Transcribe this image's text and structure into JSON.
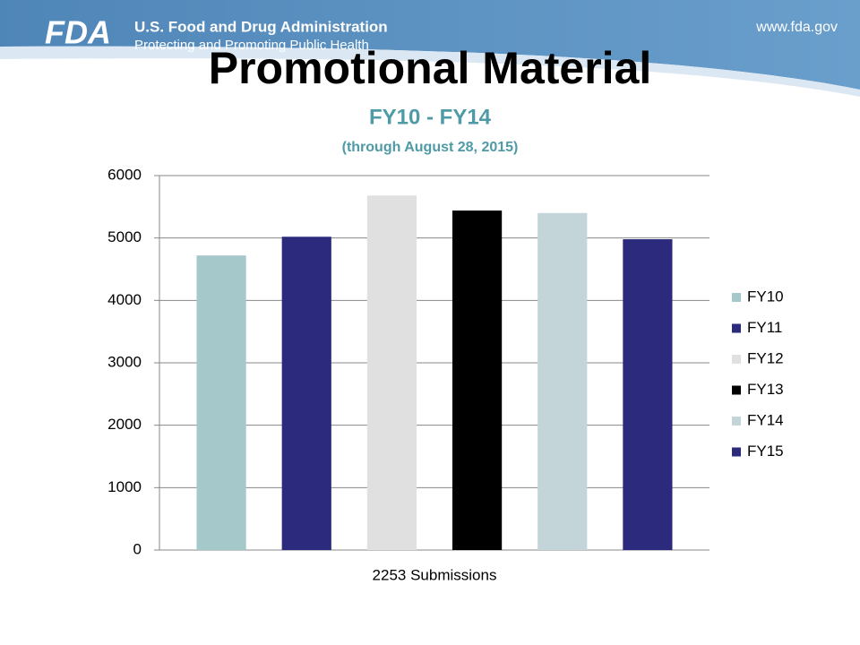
{
  "header": {
    "logo": "FDA",
    "agency": "U.S. Food and Drug Administration",
    "tagline": "Protecting and Promoting Public Health",
    "url": "www.fda.gov"
  },
  "chart_data": {
    "type": "bar",
    "title": "Promotional Material",
    "subtitle": "FY10 - FY14",
    "note": "(through August 28, 2015)",
    "categories": [
      "2253 Submissions"
    ],
    "series": [
      {
        "name": "FY10",
        "color": "#a5c8ca",
        "values": [
          4720
        ]
      },
      {
        "name": "FY11",
        "color": "#2b2a7c",
        "values": [
          5020
        ]
      },
      {
        "name": "FY12",
        "color": "#e0e0e0",
        "values": [
          5680
        ]
      },
      {
        "name": "FY13",
        "color": "#000000",
        "values": [
          5440
        ]
      },
      {
        "name": "FY14",
        "color": "#c3d5d8",
        "values": [
          5400
        ]
      },
      {
        "name": "FY15",
        "color": "#2b2a7c",
        "values": [
          4980
        ]
      }
    ],
    "ylim": [
      0,
      6000
    ],
    "yticks": [
      0,
      1000,
      2000,
      3000,
      4000,
      5000,
      6000
    ],
    "grid": true,
    "legend": "right"
  }
}
